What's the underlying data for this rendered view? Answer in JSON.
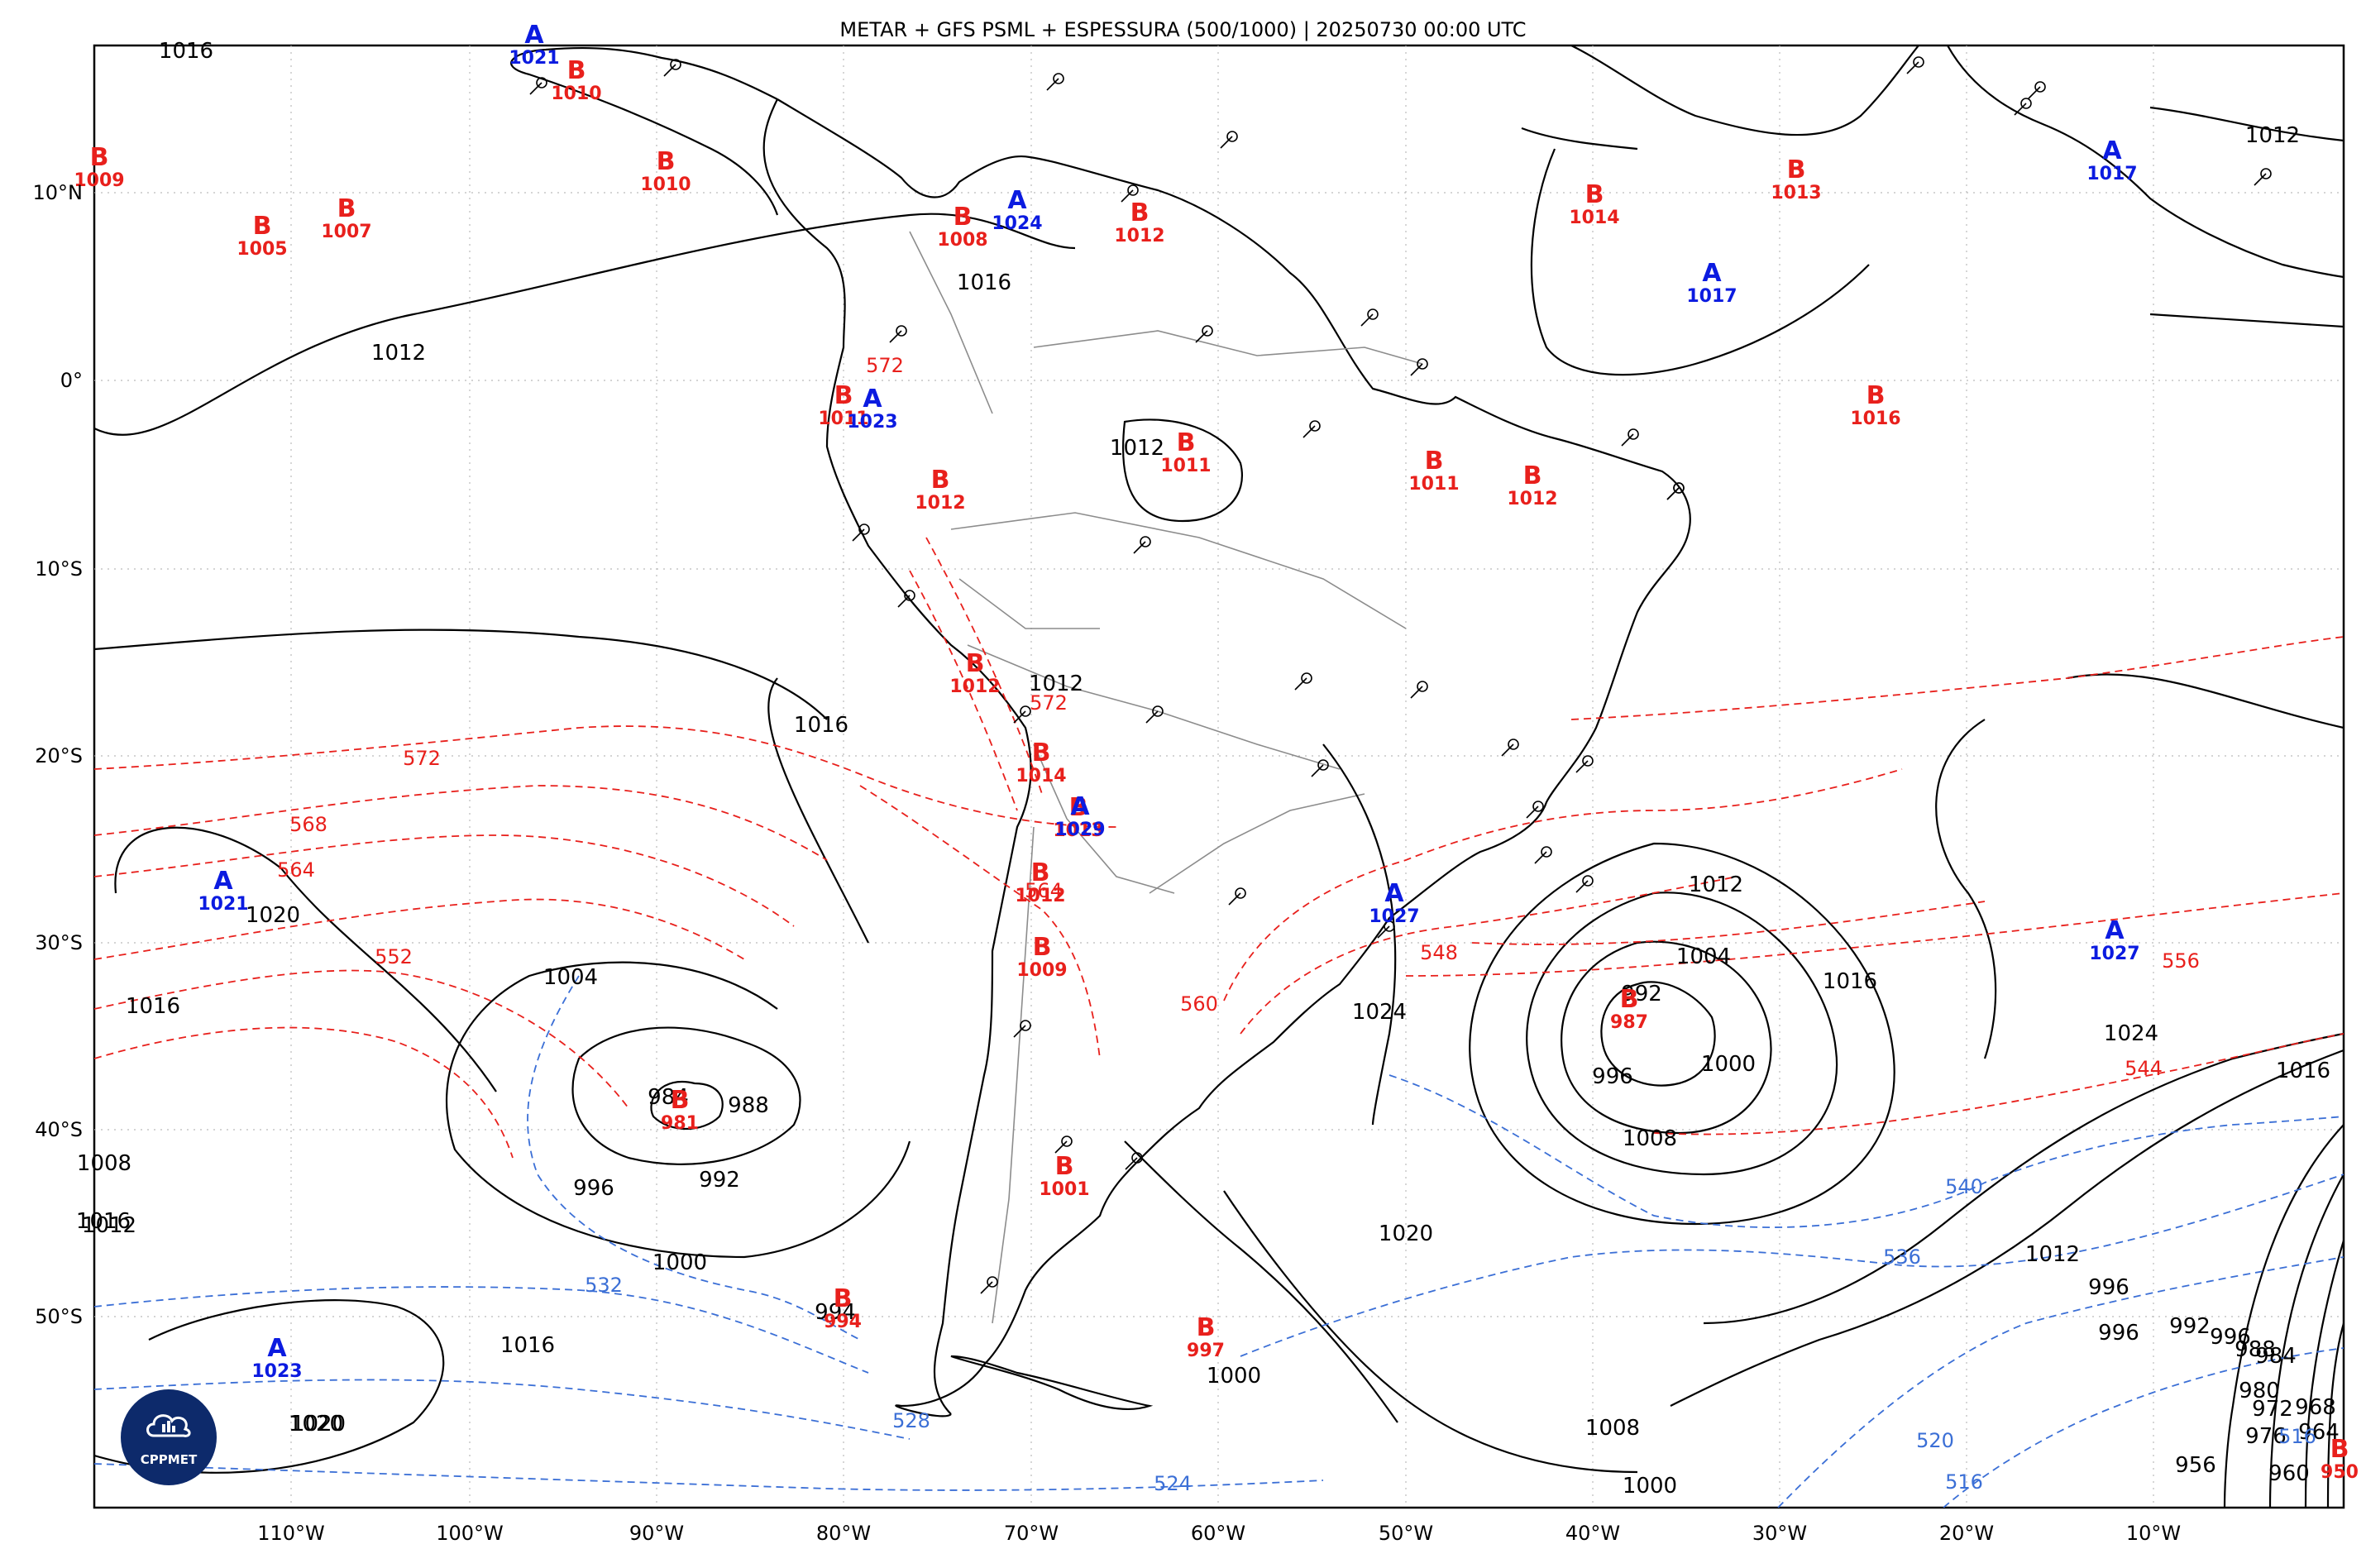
{
  "title": "METAR + GFS PSML + ESPESSURA (500/1000) | 20250730 00:00 UTC",
  "colors": {
    "isobar": "#000000",
    "thickness_warm": "#e8201c",
    "thickness_cold": "#3b6fd6",
    "high": "#0b1be0",
    "low": "#e8201c",
    "border": "#888888",
    "coast": "#000000"
  },
  "axes": {
    "lon_labels": [
      "110°W",
      "100°W",
      "90°W",
      "80°W",
      "70°W",
      "60°W",
      "50°W",
      "40°W",
      "30°W",
      "20°W",
      "10°W"
    ],
    "lat_labels": [
      "10°N",
      "0°",
      "10°S",
      "20°S",
      "30°S",
      "40°S",
      "50°S"
    ]
  },
  "pressure_centers": [
    {
      "type": "A",
      "value": "1021"
    },
    {
      "type": "B",
      "value": "1010"
    },
    {
      "type": "B",
      "value": "1009"
    },
    {
      "type": "B",
      "value": "1010"
    },
    {
      "type": "B",
      "value": "1005"
    },
    {
      "type": "B",
      "value": "1007"
    },
    {
      "type": "B",
      "value": "1008"
    },
    {
      "type": "A",
      "value": "1024"
    },
    {
      "type": "B",
      "value": "1012"
    },
    {
      "type": "B",
      "value": "1014"
    },
    {
      "type": "B",
      "value": "1013"
    },
    {
      "type": "A",
      "value": "1017"
    },
    {
      "type": "A",
      "value": "1017"
    },
    {
      "type": "B",
      "value": "1016"
    },
    {
      "type": "B",
      "value": "1011"
    },
    {
      "type": "A",
      "value": "1023"
    },
    {
      "type": "B",
      "value": "1011"
    },
    {
      "type": "B",
      "value": "1012"
    },
    {
      "type": "B",
      "value": "1011"
    },
    {
      "type": "B",
      "value": "1012"
    },
    {
      "type": "B",
      "value": "1012"
    },
    {
      "type": "B",
      "value": "1014"
    },
    {
      "type": "B",
      "value": "1012"
    },
    {
      "type": "B",
      "value": "1013"
    },
    {
      "type": "A",
      "value": "1029"
    },
    {
      "type": "A",
      "value": "1021"
    },
    {
      "type": "A",
      "value": "1027"
    },
    {
      "type": "A",
      "value": "1027"
    },
    {
      "type": "B",
      "value": "1009"
    },
    {
      "type": "B",
      "value": "987"
    },
    {
      "type": "B",
      "value": "981"
    },
    {
      "type": "B",
      "value": "1001"
    },
    {
      "type": "B",
      "value": "994"
    },
    {
      "type": "B",
      "value": "997"
    },
    {
      "type": "A",
      "value": "1023"
    },
    {
      "type": "B",
      "value": "950"
    }
  ],
  "isobar_labels": [
    "1016",
    "1012",
    "1016",
    "1012",
    "1016",
    "1012",
    "1016",
    "1020",
    "1016",
    "1020",
    "1004",
    "984",
    "988",
    "996",
    "992",
    "1000",
    "1016",
    "1020",
    "1008",
    "1012",
    "994",
    "1000",
    "1024",
    "1020",
    "1012",
    "1004",
    "992",
    "996",
    "1000",
    "1008",
    "1016",
    "1024",
    "1016",
    "1012",
    "1008",
    "1000",
    "996",
    "992",
    "996",
    "988",
    "984",
    "980",
    "972",
    "968",
    "964",
    "960",
    "956",
    "976",
    "996",
    "1012"
  ],
  "thickness_labels_warm": [
    "572",
    "568",
    "564",
    "552",
    "572",
    "572",
    "564",
    "560",
    "548",
    "556",
    "544"
  ],
  "thickness_labels_cold": [
    "532",
    "528",
    "524",
    "540",
    "536",
    "520",
    "516",
    "516"
  ],
  "logo_text": "CPPMET"
}
